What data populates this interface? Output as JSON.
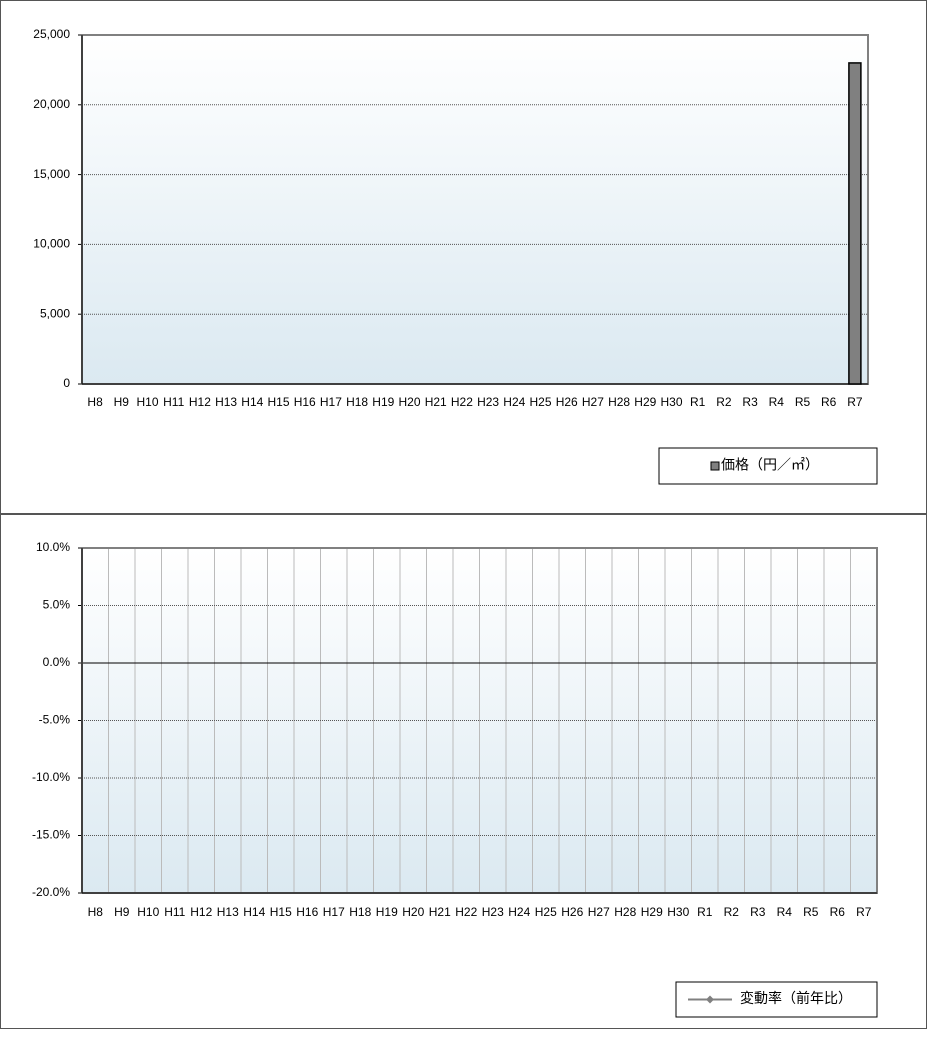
{
  "chart_data": [
    {
      "type": "bar",
      "categories": [
        "H8",
        "H9",
        "H10",
        "H11",
        "H12",
        "H13",
        "H14",
        "H15",
        "H16",
        "H17",
        "H18",
        "H19",
        "H20",
        "H21",
        "H22",
        "H23",
        "H24",
        "H25",
        "H26",
        "H27",
        "H28",
        "H29",
        "H30",
        "R1",
        "R2",
        "R3",
        "R4",
        "R5",
        "R6",
        "R7"
      ],
      "series": [
        {
          "name": "価格（円／㎡）",
          "color": "#808080",
          "values": [
            null,
            null,
            null,
            null,
            null,
            null,
            null,
            null,
            null,
            null,
            null,
            null,
            null,
            null,
            null,
            null,
            null,
            null,
            null,
            null,
            null,
            null,
            null,
            null,
            null,
            null,
            null,
            null,
            null,
            23000
          ]
        }
      ],
      "ylim": [
        0,
        25000
      ],
      "yticks": [
        0,
        {
          "value": 5000,
          "label": "5,000"
        },
        {
          "value": 10000,
          "label": "10,000"
        },
        {
          "value": 15000,
          "label": "15,000"
        },
        {
          "value": 20000,
          "label": "20,000"
        },
        {
          "value": 25000,
          "label": "25,000"
        }
      ],
      "grid": true,
      "legend": "bottom-right"
    },
    {
      "type": "line",
      "categories": [
        "H8",
        "H9",
        "H10",
        "H11",
        "H12",
        "H13",
        "H14",
        "H15",
        "H16",
        "H17",
        "H18",
        "H19",
        "H20",
        "H21",
        "H22",
        "H23",
        "H24",
        "H25",
        "H26",
        "H27",
        "H28",
        "H29",
        "H30",
        "R1",
        "R2",
        "R3",
        "R4",
        "R5",
        "R6",
        "R7"
      ],
      "series": [
        {
          "name": "変動率（前年比）",
          "color": "#808080",
          "values": [
            null,
            null,
            null,
            null,
            null,
            null,
            null,
            null,
            null,
            null,
            null,
            null,
            null,
            null,
            null,
            null,
            null,
            null,
            null,
            null,
            null,
            null,
            null,
            null,
            null,
            null,
            null,
            null,
            null,
            null
          ]
        }
      ],
      "ylim": [
        -20,
        10
      ],
      "yticks": [
        {
          "value": -20,
          "label": "-20.0%"
        },
        {
          "value": -15,
          "label": "-15.0%"
        },
        {
          "value": -10,
          "label": "-10.0%"
        },
        {
          "value": -5,
          "label": "-5.0%"
        },
        {
          "value": 0,
          "label": "0.0%"
        },
        {
          "value": 5,
          "label": "5.0%"
        },
        {
          "value": 10,
          "label": "10.0%"
        }
      ],
      "grid": true,
      "legend": "bottom-right"
    }
  ]
}
